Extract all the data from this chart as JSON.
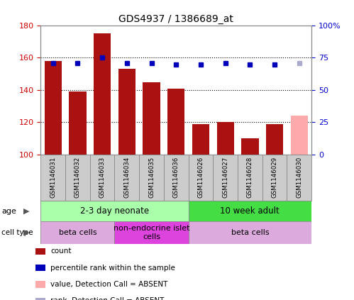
{
  "title": "GDS4937 / 1386689_at",
  "samples": [
    "GSM1146031",
    "GSM1146032",
    "GSM1146033",
    "GSM1146034",
    "GSM1146035",
    "GSM1146036",
    "GSM1146026",
    "GSM1146027",
    "GSM1146028",
    "GSM1146029",
    "GSM1146030"
  ],
  "counts": [
    158,
    139,
    175,
    153,
    145,
    141,
    119,
    120,
    110,
    119,
    124
  ],
  "percentiles": [
    71,
    71,
    75,
    71,
    71,
    70,
    70,
    71,
    70,
    70,
    71
  ],
  "absent": [
    false,
    false,
    false,
    false,
    false,
    false,
    false,
    false,
    false,
    false,
    true
  ],
  "ylim": [
    100,
    180
  ],
  "y2lim": [
    0,
    100
  ],
  "yticks": [
    100,
    120,
    140,
    160,
    180
  ],
  "y2ticks": [
    0,
    25,
    50,
    75,
    100
  ],
  "y2ticklabels": [
    "0",
    "25",
    "50",
    "75",
    "100%"
  ],
  "bar_color": "#aa1111",
  "absent_bar_color": "#ffaaaa",
  "dot_color": "#0000bb",
  "absent_dot_color": "#aaaacc",
  "grid_color": "#000000",
  "xtick_bg_color": "#cccccc",
  "age_groups": [
    {
      "label": "2-3 day neonate",
      "start": 0,
      "end": 6,
      "color": "#aaffaa"
    },
    {
      "label": "10 week adult",
      "start": 6,
      "end": 11,
      "color": "#44dd44"
    }
  ],
  "cell_type_groups": [
    {
      "label": "beta cells",
      "start": 0,
      "end": 3,
      "color": "#ddaadd"
    },
    {
      "label": "non-endocrine islet\ncells",
      "start": 3,
      "end": 6,
      "color": "#dd44dd"
    },
    {
      "label": "beta cells",
      "start": 6,
      "end": 11,
      "color": "#ddaadd"
    }
  ],
  "legend_items": [
    {
      "label": "count",
      "color": "#aa1111"
    },
    {
      "label": "percentile rank within the sample",
      "color": "#0000bb"
    },
    {
      "label": "value, Detection Call = ABSENT",
      "color": "#ffaaaa"
    },
    {
      "label": "rank, Detection Call = ABSENT",
      "color": "#aaaacc"
    }
  ],
  "background_color": "#ffffff",
  "tick_label_color_left": "#cc0000",
  "tick_label_color_right": "#0000cc",
  "spine_color": "#888888"
}
